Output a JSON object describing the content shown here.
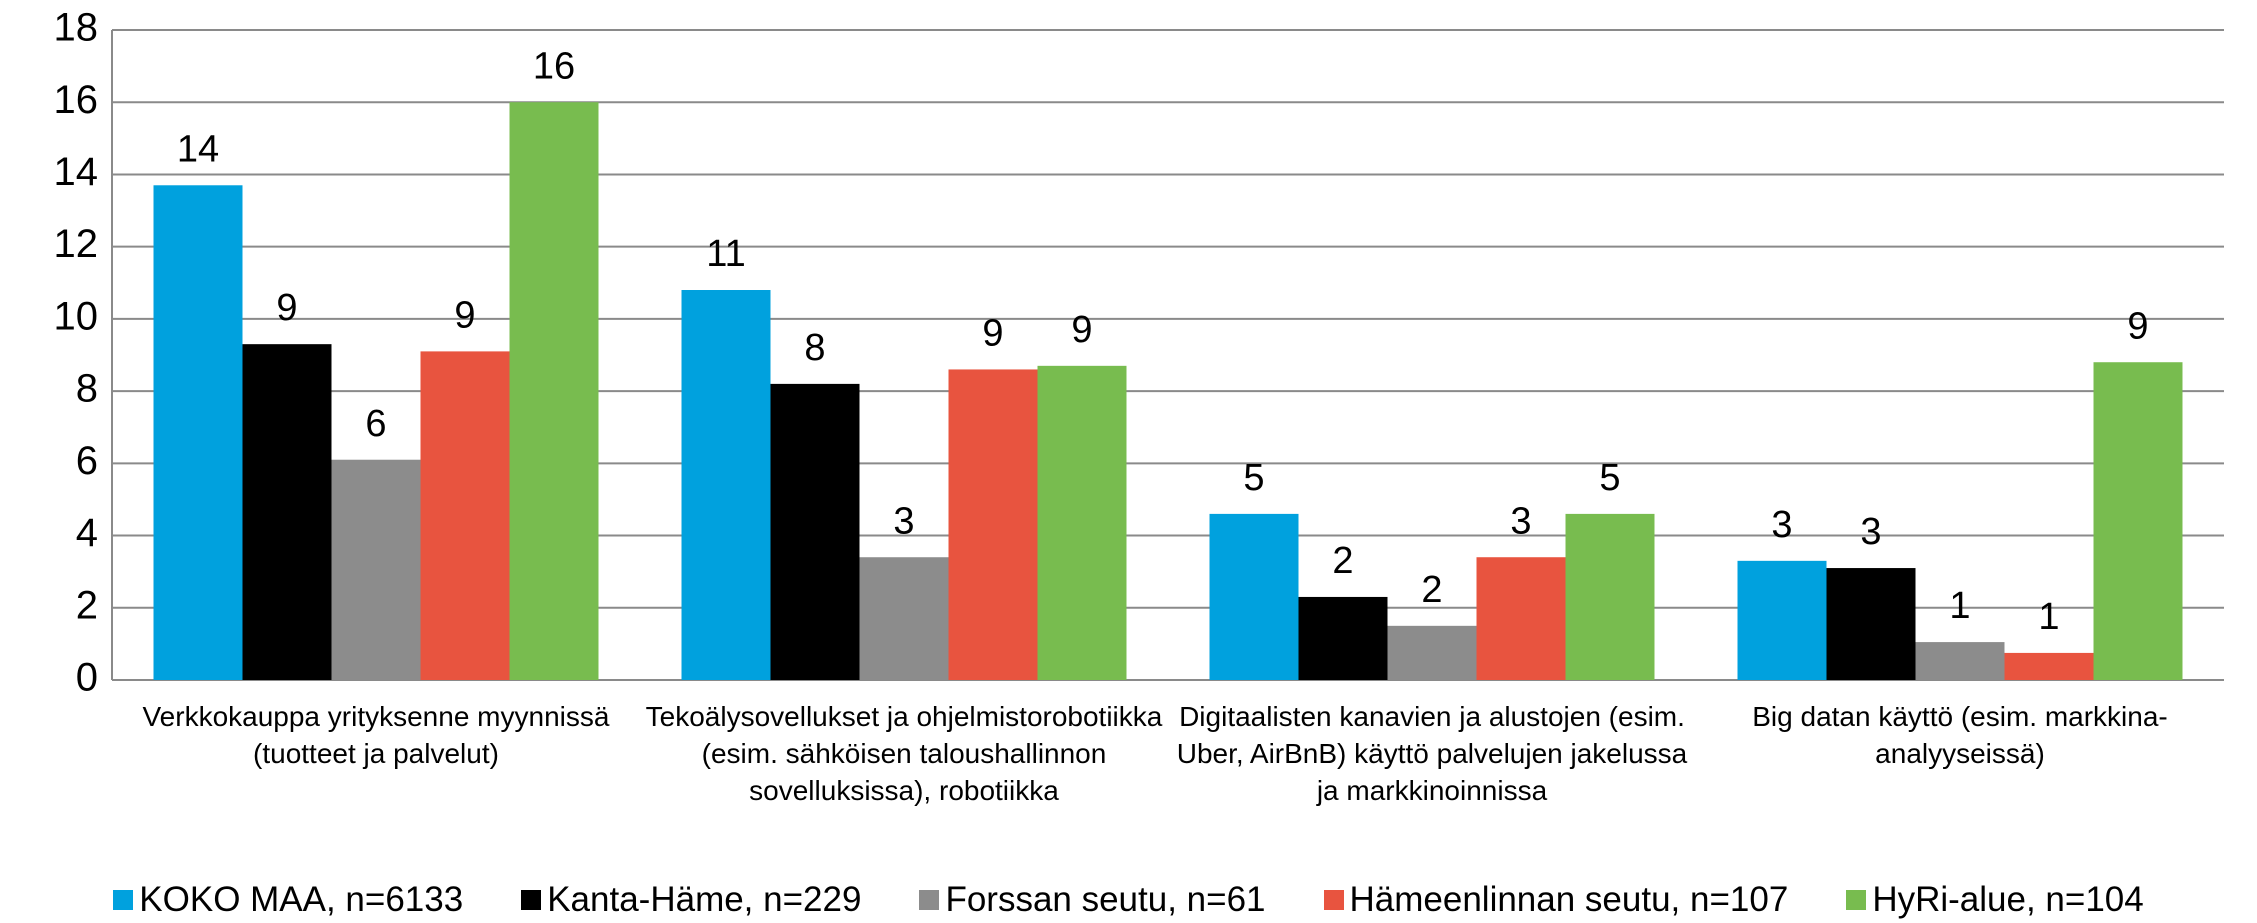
{
  "chart_data": {
    "type": "bar",
    "categories": [
      "Verkkokauppa yrityksenne myynnissä (tuotteet ja palvelut)",
      "Tekoälysovellukset ja ohjelmistorobotiikka (esim. sähköisen taloushallinnon sovelluksissa), robotiikka",
      "Digitaalisten kanavien ja alustojen (esim. Uber, AirBnB) käyttö palvelujen jakelussa ja markkinoinnissa",
      "Big datan käyttö (esim. markkina-analyyseissä)"
    ],
    "series": [
      {
        "name": "KOKO MAA, n=6133",
        "color": "#00a1de",
        "values": [
          13.7,
          10.8,
          4.6,
          3.3
        ],
        "value_labels": [
          "14",
          "11",
          "5",
          "3"
        ]
      },
      {
        "name": "Kanta-Häme, n=229",
        "color": "#000000",
        "values": [
          9.3,
          8.2,
          2.3,
          3.1
        ],
        "value_labels": [
          "9",
          "8",
          "2",
          "3"
        ]
      },
      {
        "name": "Forssan seutu, n=61",
        "color": "#8c8c8c",
        "values": [
          6.1,
          3.4,
          1.5,
          1.05
        ],
        "value_labels": [
          "6",
          "3",
          "2",
          "1"
        ]
      },
      {
        "name": "Hämeenlinnan seutu, n=107",
        "color": "#e8543f",
        "values": [
          9.1,
          8.6,
          3.4,
          0.75
        ],
        "value_labels": [
          "9",
          "9",
          "3",
          "1"
        ]
      },
      {
        "name": "HyRi-alue, n=104",
        "color": "#78bc4f",
        "values": [
          16.0,
          8.7,
          4.6,
          8.8
        ],
        "value_labels": [
          "16",
          "9",
          "5",
          "9"
        ]
      }
    ],
    "ylim": [
      0,
      18
    ],
    "yticks": [
      0,
      2,
      4,
      6,
      8,
      10,
      12,
      14,
      16,
      18
    ],
    "grid": true,
    "legend": "bottom"
  }
}
